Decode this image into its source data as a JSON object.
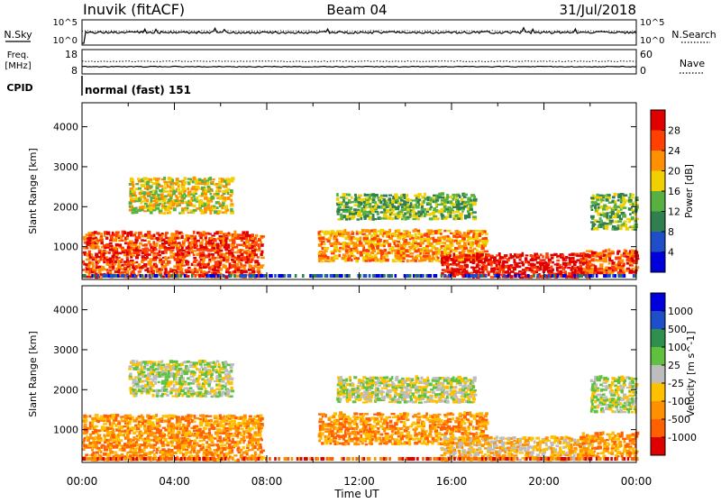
{
  "header": {
    "station": "Inuvik (fitACF)",
    "beam": "Beam 04",
    "date": "31/Jul/2018"
  },
  "panels": {
    "nsky": {
      "label": "N.Sky",
      "right_label": "N.Search",
      "left_ticks": [
        "10^5",
        "10^0"
      ],
      "right_ticks": [
        "10^5",
        "10^0"
      ]
    },
    "freq": {
      "label_line1": "Freq.",
      "label_line2": "[MHz]",
      "right_label": "Nave",
      "left_ticks": [
        "18",
        "8"
      ],
      "right_ticks": [
        "60",
        "0"
      ]
    },
    "cpid": {
      "label": "CPID",
      "text": "normal (fast) 151"
    }
  },
  "chart_data": [
    {
      "type": "heatmap",
      "title": "",
      "xlabel": "Time UT",
      "ylabel": "Slant Range [km]",
      "x_ticks": [
        "00:00",
        "04:00",
        "08:00",
        "12:00",
        "16:00",
        "20:00",
        "00:00"
      ],
      "xlim": [
        0,
        24
      ],
      "ylim": [
        180,
        4600
      ],
      "y_ticks": [
        1000,
        2000,
        3000,
        4000
      ],
      "colorbar": {
        "label": "Power [dB]",
        "ticks": [
          "28",
          "24",
          "20",
          "16",
          "12",
          "8",
          "4"
        ],
        "colors": [
          "#0000dd",
          "#1f4fc8",
          "#2f7f4f",
          "#58b040",
          "#f0d000",
          "#ff9000",
          "#ff4000",
          "#e00000"
        ]
      },
      "bands": [
        {
          "t0": 0.0,
          "t1": 7.8,
          "r0": 200,
          "r1": 1350,
          "level": 6
        },
        {
          "t0": 2.0,
          "t1": 6.5,
          "r0": 1800,
          "r1": 2700,
          "level": 4
        },
        {
          "t0": 10.2,
          "t1": 17.5,
          "r0": 600,
          "r1": 1400,
          "level": 5
        },
        {
          "t0": 11.0,
          "t1": 17.0,
          "r0": 1650,
          "r1": 2300,
          "level": 3
        },
        {
          "t0": 15.5,
          "t1": 22.0,
          "r0": 200,
          "r1": 800,
          "level": 7
        },
        {
          "t0": 21.5,
          "t1": 24.0,
          "r0": 300,
          "r1": 900,
          "level": 6
        },
        {
          "t0": 22.0,
          "t1": 24.0,
          "r0": 1400,
          "r1": 2300,
          "level": 3
        }
      ]
    },
    {
      "type": "heatmap",
      "title": "",
      "xlabel": "Time UT",
      "ylabel": "Slant Range [km]",
      "x_ticks": [
        "00:00",
        "04:00",
        "08:00",
        "12:00",
        "16:00",
        "20:00",
        "00:00"
      ],
      "xlim": [
        0,
        24
      ],
      "ylim": [
        180,
        4600
      ],
      "y_ticks": [
        1000,
        2000,
        3000,
        4000
      ],
      "colorbar": {
        "label": "Velocity [m s^-1]",
        "ticks": [
          "1000",
          "500",
          "100",
          "25",
          "-25",
          "-100",
          "-500",
          "-1000"
        ],
        "colors": [
          "#e00000",
          "#ff6000",
          "#ff9000",
          "#ffc000",
          "#bdbdbd",
          "#60c040",
          "#2f8f4f",
          "#1f4fc8",
          "#0000dd"
        ]
      },
      "bands": [
        {
          "t0": 0.0,
          "t1": 7.8,
          "r0": 200,
          "r1": 1350,
          "level": 2
        },
        {
          "t0": 2.0,
          "t1": 6.5,
          "r0": 1800,
          "r1": 2700,
          "level": 4
        },
        {
          "t0": 10.2,
          "t1": 17.5,
          "r0": 600,
          "r1": 1400,
          "level": 2
        },
        {
          "t0": 11.0,
          "t1": 17.0,
          "r0": 1650,
          "r1": 2300,
          "level": 4
        },
        {
          "t0": 15.5,
          "t1": 22.0,
          "r0": 200,
          "r1": 800,
          "level": 3
        },
        {
          "t0": 21.5,
          "t1": 24.0,
          "r0": 300,
          "r1": 900,
          "level": 2
        },
        {
          "t0": 22.0,
          "t1": 24.0,
          "r0": 1400,
          "r1": 2300,
          "level": 4
        }
      ]
    }
  ]
}
